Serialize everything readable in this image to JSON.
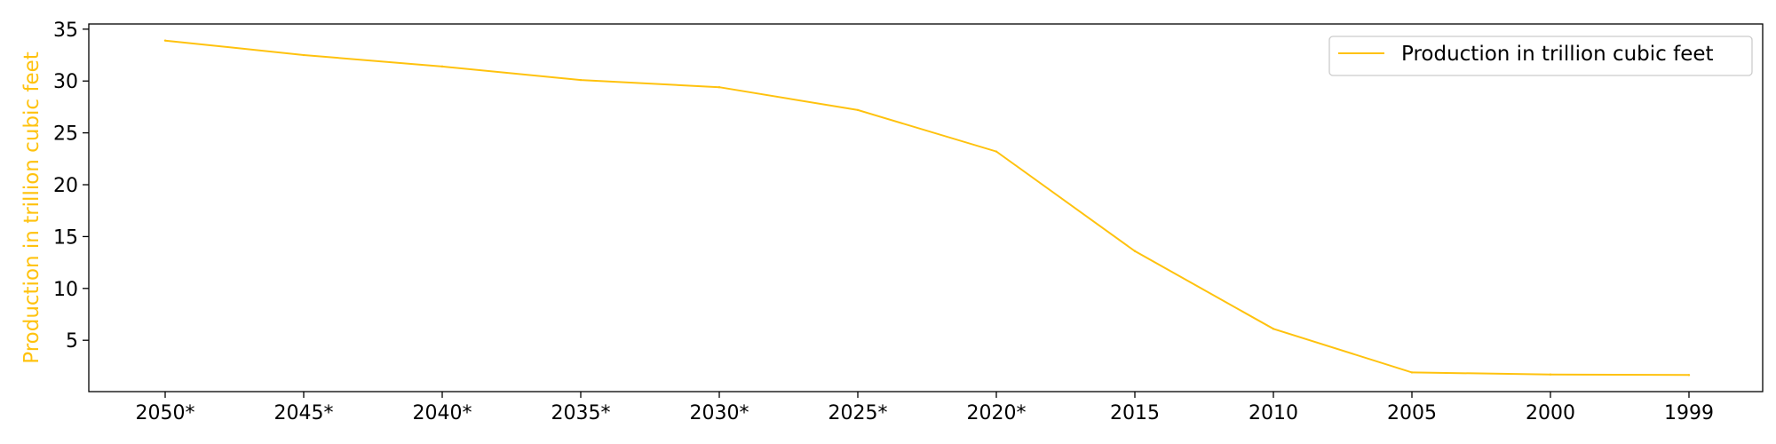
{
  "colors": {
    "series": "#FFC20E",
    "axis": "#000000",
    "background": "#ffffff"
  },
  "chart_data": {
    "type": "line",
    "title": "",
    "xlabel": "",
    "ylabel": "Production in trillion cubic feet",
    "categories": [
      "2050*",
      "2045*",
      "2040*",
      "2035*",
      "2030*",
      "2025*",
      "2020*",
      "2015",
      "2010",
      "2005",
      "2000",
      "1999"
    ],
    "series": [
      {
        "name": "Production in trillion cubic feet",
        "values": [
          33.9,
          32.5,
          31.4,
          30.1,
          29.4,
          27.2,
          23.2,
          13.6,
          6.1,
          1.9,
          1.7,
          1.65
        ]
      }
    ],
    "yticks": [
      5,
      10,
      15,
      20,
      25,
      30,
      35
    ],
    "ylim": [
      0.05,
      35.5
    ],
    "grid": false,
    "legend_position": "top-right"
  }
}
